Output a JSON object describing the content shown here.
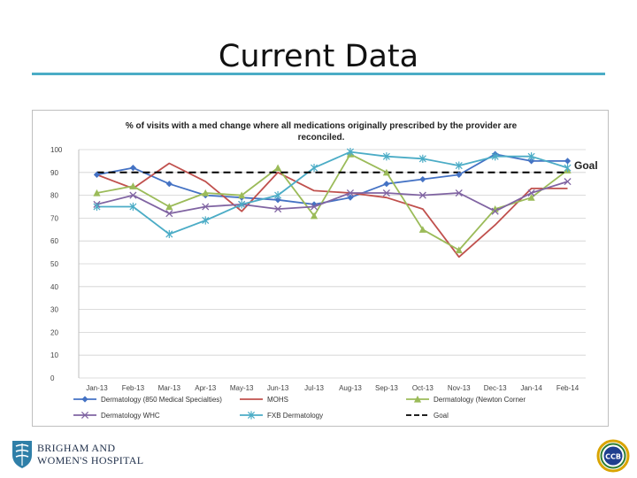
{
  "slide": {
    "title": "Current Data",
    "accent_color": "#4bacc6"
  },
  "logos": {
    "left": {
      "icon": "brigham-shield-icon",
      "lines": [
        "BRIGHAM AND",
        "WOMEN'S HOSPITAL"
      ]
    },
    "right": {
      "icon": "ccb-emblem-icon",
      "text": "CCB"
    }
  },
  "chart_data": {
    "type": "line",
    "title": "% of visits with a med change where all medications originally prescribed by the provider are reconciled.",
    "title_lines": [
      "% of visits with a med change where all medications originally prescribed by the provider are",
      "reconciled."
    ],
    "xlabel": "",
    "ylabel": "",
    "ylim": [
      0,
      100
    ],
    "yticks": [
      0,
      10,
      20,
      30,
      40,
      50,
      60,
      70,
      80,
      90,
      100
    ],
    "grid": true,
    "legend_position": "bottom",
    "categories": [
      "Jan-13",
      "Feb-13",
      "Mar-13",
      "Apr-13",
      "May-13",
      "Jun-13",
      "Jul-13",
      "Aug-13",
      "Sep-13",
      "Oct-13",
      "Nov-13",
      "Dec-13",
      "Jan-14",
      "Feb-14"
    ],
    "series": [
      {
        "name": "Dermatology (850 Medical Specialties)",
        "color": "#4472c4",
        "marker": "diamond",
        "values": [
          89,
          92,
          85,
          80,
          79,
          78,
          76,
          79,
          85,
          87,
          89,
          98,
          95,
          95
        ]
      },
      {
        "name": "MOHS",
        "color": "#c0504d",
        "marker": "none",
        "values": [
          89,
          83,
          94,
          86,
          73,
          90,
          82,
          81,
          79,
          74,
          53,
          67,
          83,
          83
        ]
      },
      {
        "name": "Dermatology (Newton Corner",
        "color": "#9bbb59",
        "marker": "triangle",
        "values": [
          81,
          84,
          75,
          81,
          80,
          92,
          71,
          98,
          90,
          65,
          56,
          74,
          79,
          91
        ]
      },
      {
        "name": "Dermatology WHC",
        "color": "#8064a2",
        "marker": "x",
        "values": [
          76,
          80,
          72,
          75,
          76,
          74,
          75,
          81,
          81,
          80,
          81,
          73,
          81,
          86
        ]
      },
      {
        "name": "FXB Dermatology",
        "color": "#4bacc6",
        "marker": "star",
        "values": [
          75,
          75,
          63,
          69,
          76,
          80,
          92,
          99,
          97,
          96,
          93,
          97,
          97,
          92
        ]
      },
      {
        "name": "Goal",
        "color": "#000000",
        "marker": "none",
        "dashed": true,
        "values": [
          90,
          90,
          90,
          90,
          90,
          90,
          90,
          90,
          90,
          90,
          90,
          90,
          90,
          90
        ]
      }
    ],
    "annotations": [
      {
        "text": "Goal",
        "series": "Goal"
      }
    ]
  }
}
